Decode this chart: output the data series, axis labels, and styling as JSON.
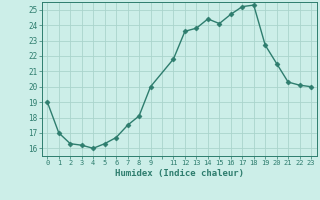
{
  "x": [
    0,
    1,
    2,
    3,
    4,
    5,
    6,
    7,
    8,
    9,
    11,
    12,
    13,
    14,
    15,
    16,
    17,
    18,
    19,
    20,
    21,
    22,
    23
  ],
  "y": [
    19,
    17,
    16.3,
    16.2,
    16,
    16.3,
    16.7,
    17.5,
    18.1,
    20.0,
    21.8,
    23.6,
    23.8,
    24.4,
    24.1,
    24.7,
    25.2,
    25.3,
    22.7,
    21.5,
    20.3,
    20.1,
    20.0
  ],
  "xlim": [
    -0.5,
    23.5
  ],
  "ylim": [
    15.5,
    25.5
  ],
  "yticks": [
    16,
    17,
    18,
    19,
    20,
    21,
    22,
    23,
    24,
    25
  ],
  "xtick_positions": [
    0,
    1,
    2,
    3,
    4,
    5,
    6,
    7,
    8,
    9,
    10,
    11,
    12,
    13,
    14,
    15,
    16,
    17,
    18,
    19,
    20,
    21,
    22,
    23
  ],
  "xtick_labels": [
    "0",
    "1",
    "2",
    "3",
    "4",
    "5",
    "6",
    "7",
    "8",
    "9",
    "",
    "11",
    "12",
    "13",
    "14",
    "15",
    "16",
    "17",
    "18",
    "19",
    "20",
    "21",
    "22",
    "23"
  ],
  "xlabel": "Humidex (Indice chaleur)",
  "line_color": "#2e7d6e",
  "marker": "D",
  "marker_size": 2.5,
  "bg_color": "#cceee8",
  "grid_color": "#aad4cc"
}
